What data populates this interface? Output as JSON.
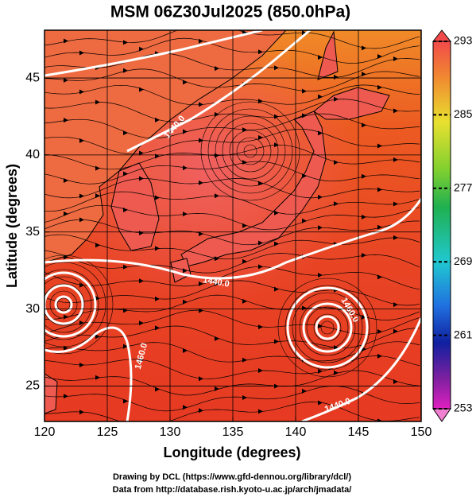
{
  "chart_data": {
    "type": "map",
    "title": "MSM 06Z30Jul2025 (850.0hPa)",
    "x_label": "Longitude (degrees)",
    "y_label": "Latitude  (degrees)",
    "xlim": [
      120,
      150
    ],
    "ylim": [
      22.7,
      48.1
    ],
    "xticks": [
      120,
      125,
      130,
      135,
      140,
      145,
      150
    ],
    "yticks": [
      25,
      30,
      35,
      40,
      45
    ],
    "grid": true,
    "clim": [
      253,
      293
    ],
    "cticks": [
      253,
      261,
      269,
      277,
      285,
      293
    ],
    "contour_labels": [
      "1440.0",
      "1440.0",
      "1460.0",
      "1440.0",
      "1460.0"
    ],
    "footer": [
      "Drawing by DCL (https://www.gfd-dennou.org/library/dcl/)",
      "Data from http://database.rish.kyoto-u.ac.jp/arch/jmadata/"
    ]
  }
}
